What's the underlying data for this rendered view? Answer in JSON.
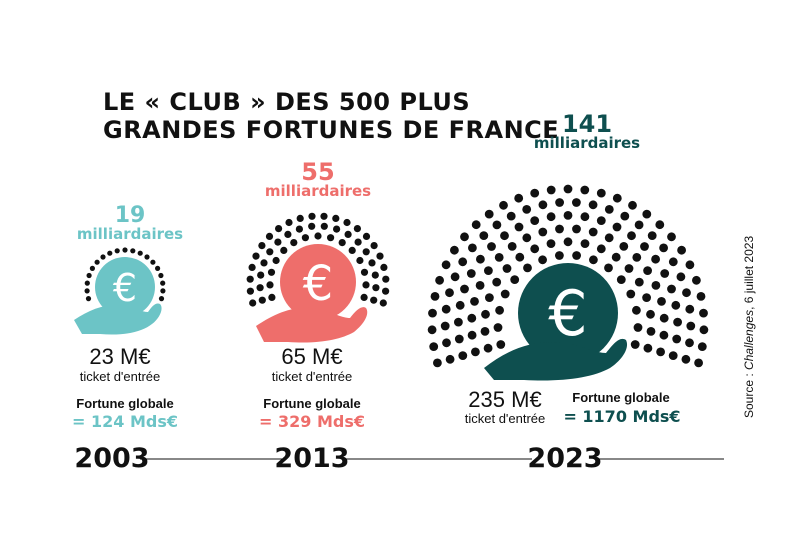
{
  "title": {
    "line1": "LE « CLUB » DES 500 PLUS",
    "line2": "GRANDES  FORTUNES DE FRANCE"
  },
  "colors": {
    "y2003": "#6cc4c6",
    "y2013": "#ee6e6b",
    "y2023": "#0e4f4f",
    "dots": "#111111"
  },
  "icons": [
    "euro-coin-in-hand-icon"
  ],
  "groups": [
    {
      "year": "2003",
      "billionaires_count": 19,
      "billionaires_count_text": "19",
      "billionaires_label": "milliardaires",
      "ticket_amount": "23 M€",
      "ticket_label": "ticket d'entrée",
      "fortune_label": "Fortune globale",
      "fortune_value": "= 124 Mds€"
    },
    {
      "year": "2013",
      "billionaires_count": 55,
      "billionaires_count_text": "55",
      "billionaires_label": "milliardaires",
      "ticket_amount": "65 M€",
      "ticket_label": "ticket d'entrée",
      "fortune_label": "Fortune globale",
      "fortune_value": "= 329 Mds€"
    },
    {
      "year": "2023",
      "billionaires_count": 141,
      "billionaires_count_text": "141",
      "billionaires_label": "milliardaires",
      "ticket_amount": "235 M€",
      "ticket_label": "ticket d'entrée",
      "fortune_label": "Fortune globale",
      "fortune_value": "= 1170 Mds€"
    }
  ],
  "source": {
    "prefix": "Source : ",
    "publication": "Challenges",
    "date": ", 6 juillet 2023"
  }
}
